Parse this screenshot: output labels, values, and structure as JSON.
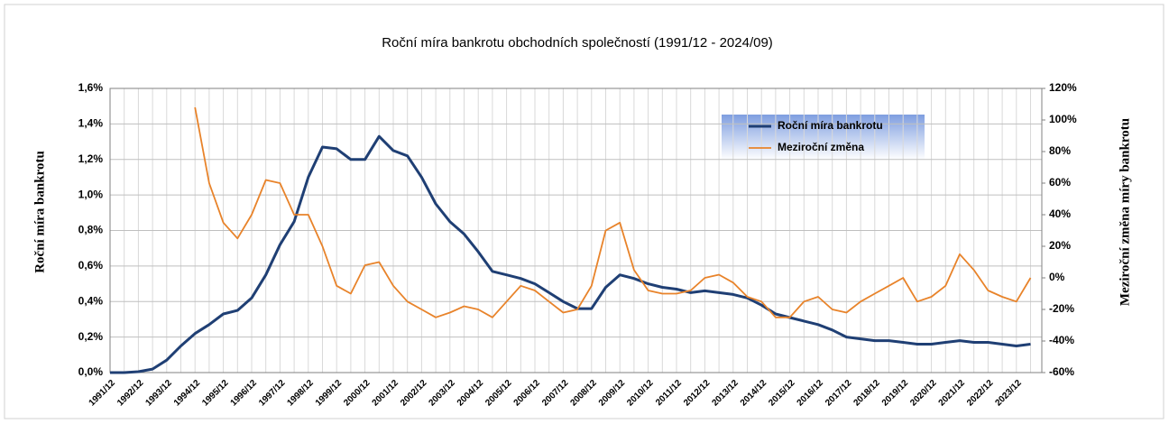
{
  "chart_data": {
    "type": "line",
    "title": "Roční míra bankrotu obchodních společností (1991/12 - 2024/09)",
    "y_label": "Roční míra bankrotu",
    "y2_label": "Meziroční změna míry bankrotu",
    "categories": [
      "1991/12",
      null,
      "1992/12",
      null,
      "1993/12",
      null,
      "1994/12",
      null,
      "1995/12",
      null,
      "1996/12",
      null,
      "1997/12",
      null,
      "1998/12",
      null,
      "1999/12",
      null,
      "2000/12",
      null,
      "2001/12",
      null,
      "2002/12",
      null,
      "2003/12",
      null,
      "2004/12",
      null,
      "2005/12",
      null,
      "2006/12",
      null,
      "2007/12",
      null,
      "2008/12",
      null,
      "2009/12",
      null,
      "2010/12",
      null,
      "2011/12",
      null,
      "2012/12",
      null,
      "2013/12",
      null,
      "2014/12",
      null,
      "2015/12",
      null,
      "2016/12",
      null,
      "2017/12",
      null,
      "2018/12",
      null,
      "2019/12",
      null,
      "2020/12",
      null,
      "2021/12",
      null,
      "2022/12",
      null,
      "2023/12",
      null
    ],
    "series": [
      {
        "name": "Roční míra bankrotu",
        "color": "#1f3f74",
        "values": [
          0,
          0,
          0.005,
          0.02,
          0.07,
          0.15,
          0.22,
          0.27,
          0.33,
          0.35,
          0.42,
          0.55,
          0.72,
          0.85,
          1.1,
          1.27,
          1.26,
          1.2,
          1.2,
          1.33,
          1.25,
          1.22,
          1.1,
          0.95,
          0.85,
          0.78,
          0.68,
          0.57,
          0.55,
          0.53,
          0.5,
          0.45,
          0.4,
          0.36,
          0.36,
          0.48,
          0.55,
          0.53,
          0.5,
          0.48,
          0.47,
          0.45,
          0.46,
          0.45,
          0.44,
          0.42,
          0.38,
          0.33,
          0.31,
          0.29,
          0.27,
          0.24,
          0.2,
          0.19,
          0.18,
          0.18,
          0.17,
          0.16,
          0.16,
          0.17,
          0.18,
          0.17,
          0.17,
          0.16,
          0.15,
          0.16
        ]
      },
      {
        "name": "Meziroční změna",
        "color": "#e8832a",
        "axis": "y2",
        "values": [
          null,
          null,
          null,
          null,
          null,
          null,
          108,
          60,
          35,
          25,
          40,
          62,
          60,
          40,
          40,
          20,
          -5,
          -10,
          8,
          10,
          -5,
          -15,
          -20,
          -25,
          -22,
          -18,
          -20,
          -25,
          -15,
          -5,
          -8,
          -15,
          -22,
          -20,
          -5,
          30,
          35,
          5,
          -8,
          -10,
          -10,
          -8,
          0,
          2,
          -3,
          -12,
          -15,
          -25,
          -25,
          -15,
          -12,
          -20,
          -22,
          -15,
          -10,
          -5,
          0,
          -15,
          -12,
          -5,
          15,
          5,
          -8,
          -12,
          -15,
          0
        ]
      }
    ],
    "ylim": [
      0,
      1.6
    ],
    "yticks": [
      {
        "value": 0,
        "label": "0,0%"
      },
      {
        "value": 0.2,
        "label": "0,2%"
      },
      {
        "value": 0.4,
        "label": "0,4%"
      },
      {
        "value": 0.6,
        "label": "0,6%"
      },
      {
        "value": 0.8,
        "label": "0,8%"
      },
      {
        "value": 1.0,
        "label": "1,0%"
      },
      {
        "value": 1.2,
        "label": "1,2%"
      },
      {
        "value": 1.4,
        "label": "1,4%"
      },
      {
        "value": 1.6,
        "label": "1,6%"
      }
    ],
    "y2lim": [
      -60,
      120
    ],
    "y2ticks": [
      {
        "value": -60,
        "label": "-60%"
      },
      {
        "value": -40,
        "label": "-40%"
      },
      {
        "value": -20,
        "label": "-20%"
      },
      {
        "value": 0,
        "label": "0%"
      },
      {
        "value": 20,
        "label": "20%"
      },
      {
        "value": 40,
        "label": "40%"
      },
      {
        "value": 60,
        "label": "60%"
      },
      {
        "value": 80,
        "label": "80%"
      },
      {
        "value": 100,
        "label": "100%"
      },
      {
        "value": 120,
        "label": "120%"
      }
    ],
    "grid": true
  }
}
